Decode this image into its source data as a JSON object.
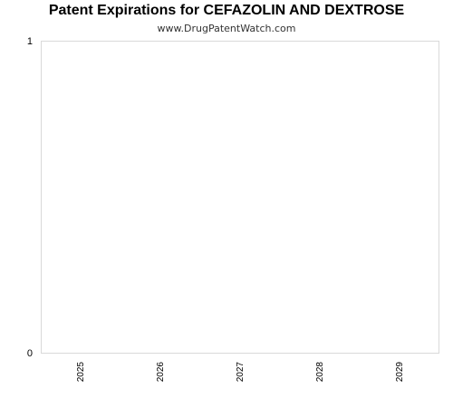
{
  "chart_data": {
    "type": "bar",
    "title": "Patent Expirations for CEFAZOLIN AND DEXTROSE",
    "subtitle": "www.DrugPatentWatch.com",
    "categories": [
      "2025",
      "2026",
      "2027",
      "2028",
      "2029"
    ],
    "values": [
      0,
      0,
      0,
      0,
      0
    ],
    "ylim": [
      0,
      1
    ],
    "yticks": [
      "0",
      "1"
    ],
    "xlabel": "",
    "ylabel": "",
    "grid": false,
    "colors": {
      "plot_border": "#d9d9d9",
      "text": "#000000"
    }
  }
}
